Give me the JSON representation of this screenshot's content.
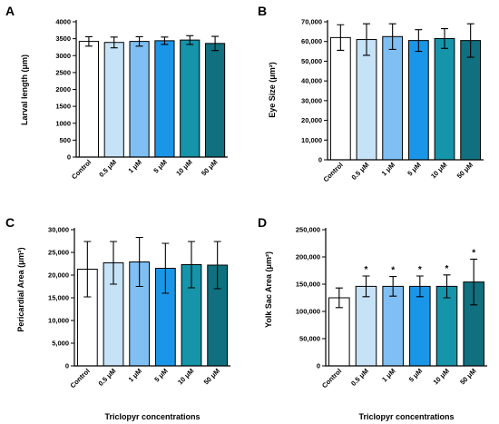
{
  "chart_data": [
    {
      "panel": "A",
      "type": "bar",
      "ylabel": "Larval length (μm)",
      "xlabel": "",
      "categories": [
        "Control",
        "0.5 μM",
        "1 μM",
        "5 μM",
        "10 μM",
        "50 μM"
      ],
      "values": [
        3420,
        3390,
        3420,
        3440,
        3460,
        3360
      ],
      "errors": [
        140,
        160,
        140,
        110,
        130,
        210
      ],
      "significance": [
        "",
        "",
        "",
        "",
        "",
        ""
      ],
      "ylim": [
        0,
        4000
      ],
      "yticks": [
        0,
        500,
        1000,
        1500,
        2000,
        2500,
        3000,
        3500,
        4000
      ],
      "ytick_labels": [
        "0",
        "500",
        "1000",
        "1500",
        "2000",
        "2500",
        "3000",
        "3500",
        "4000"
      ],
      "colors": [
        "#ffffff",
        "#c6e2f7",
        "#7fbff3",
        "#1a96e8",
        "#1594aa",
        "#10707f"
      ]
    },
    {
      "panel": "B",
      "type": "bar",
      "ylabel": "Eye Size (μm²)",
      "xlabel": "",
      "categories": [
        "Control",
        "0.5 μM",
        "1 μM",
        "5 μM",
        "10 μM",
        "50 μM"
      ],
      "values": [
        62000,
        61000,
        62500,
        60500,
        61500,
        60500
      ],
      "errors": [
        6500,
        8000,
        6500,
        5500,
        5000,
        8500
      ],
      "significance": [
        "",
        "",
        "",
        "",
        "",
        ""
      ],
      "ylim": [
        0,
        70000
      ],
      "yticks": [
        0,
        10000,
        20000,
        30000,
        40000,
        50000,
        60000,
        70000
      ],
      "ytick_labels": [
        "0",
        "10,000",
        "20,000",
        "30,000",
        "40,000",
        "50,000",
        "60,000",
        "70,000"
      ],
      "colors": [
        "#ffffff",
        "#c6e2f7",
        "#7fbff3",
        "#1a96e8",
        "#1594aa",
        "#10707f"
      ]
    },
    {
      "panel": "C",
      "type": "bar",
      "ylabel": "Pericardial Area (μm²)",
      "xlabel": "Triclopyr concentrations",
      "categories": [
        "Control",
        "0.5 μM",
        "1 μM",
        "5 μM",
        "10 μM",
        "50 μM"
      ],
      "values": [
        21300,
        22700,
        22900,
        21500,
        22300,
        22200
      ],
      "errors": [
        6100,
        4700,
        5400,
        5500,
        5100,
        5200
      ],
      "significance": [
        "",
        "",
        "",
        "",
        "",
        ""
      ],
      "ylim": [
        0,
        30000
      ],
      "yticks": [
        0,
        5000,
        10000,
        15000,
        20000,
        25000,
        30000
      ],
      "ytick_labels": [
        "0",
        "5,000",
        "10,000",
        "15,000",
        "20,000",
        "25,000",
        "30,000"
      ],
      "colors": [
        "#ffffff",
        "#c6e2f7",
        "#7fbff3",
        "#1a96e8",
        "#1594aa",
        "#10707f"
      ]
    },
    {
      "panel": "D",
      "type": "bar",
      "ylabel": "Yolk Sac Area (μm²)",
      "xlabel": "Triclopyr concentrations",
      "categories": [
        "Control",
        "0.5 μM",
        "1 μM",
        "5 μM",
        "10 μM",
        "50 μM"
      ],
      "values": [
        125000,
        146000,
        146000,
        146000,
        146000,
        154000
      ],
      "errors": [
        18000,
        19000,
        18000,
        19000,
        21000,
        42000
      ],
      "significance": [
        "",
        "*",
        "*",
        "*",
        "*",
        "*"
      ],
      "ylim": [
        0,
        250000
      ],
      "yticks": [
        0,
        50000,
        100000,
        150000,
        200000,
        250000
      ],
      "ytick_labels": [
        "0",
        "50,000",
        "100,000",
        "150,000",
        "200,000",
        "250,000"
      ],
      "colors": [
        "#ffffff",
        "#c6e2f7",
        "#7fbff3",
        "#1a96e8",
        "#1594aa",
        "#10707f"
      ]
    }
  ]
}
